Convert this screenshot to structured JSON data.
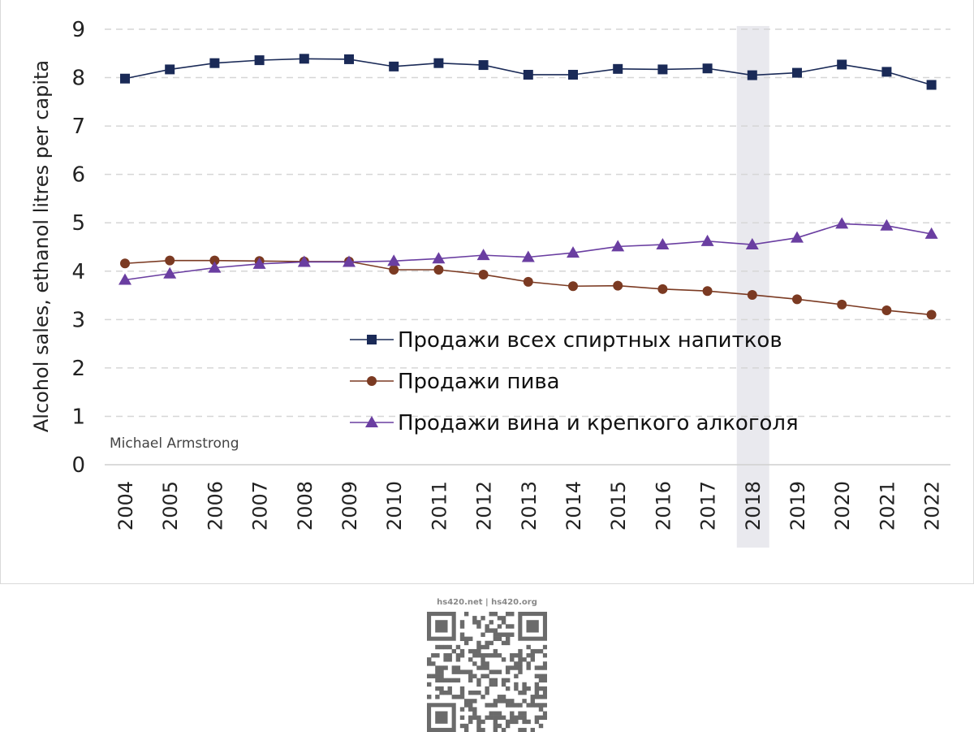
{
  "chart_data": {
    "type": "line",
    "ylabel": "Alcohol sales, ethanol litres per capita",
    "ylim": [
      0,
      9
    ],
    "yticks": [
      0,
      1,
      2,
      3,
      4,
      5,
      6,
      7,
      8,
      9
    ],
    "grid": "horizontal-dashed",
    "highlight_category": "2018",
    "legend_position": "bottom-center",
    "categories": [
      "2004",
      "2005",
      "2006",
      "2007",
      "2008",
      "2009",
      "2010",
      "2011",
      "2012",
      "2013",
      "2014",
      "2015",
      "2016",
      "2017",
      "2018",
      "2019",
      "2020",
      "2021",
      "2022"
    ],
    "series": [
      {
        "name": "Продажи всех спиртных напитков",
        "marker": "square",
        "color": "#1a2a57",
        "values": [
          7.98,
          8.17,
          8.3,
          8.36,
          8.39,
          8.38,
          8.23,
          8.3,
          8.26,
          8.06,
          8.06,
          8.18,
          8.17,
          8.19,
          8.05,
          8.1,
          8.27,
          8.12,
          7.85
        ]
      },
      {
        "name": "Продажи пива",
        "marker": "circle",
        "color": "#7b3a22",
        "values": [
          4.16,
          4.22,
          4.22,
          4.21,
          4.2,
          4.2,
          4.03,
          4.03,
          3.93,
          3.78,
          3.69,
          3.7,
          3.63,
          3.59,
          3.51,
          3.42,
          3.31,
          3.19,
          3.1
        ]
      },
      {
        "name": "Продажи вина и крепкого алкоголя",
        "marker": "triangle",
        "color": "#6a3ea1",
        "values": [
          3.82,
          3.95,
          4.07,
          4.15,
          4.19,
          4.19,
          4.21,
          4.26,
          4.33,
          4.29,
          4.38,
          4.51,
          4.55,
          4.62,
          4.55,
          4.69,
          4.98,
          4.94,
          4.77
        ]
      }
    ]
  },
  "credit": "Michael Armstrong",
  "watermark": "hs420.net | hs420.org"
}
